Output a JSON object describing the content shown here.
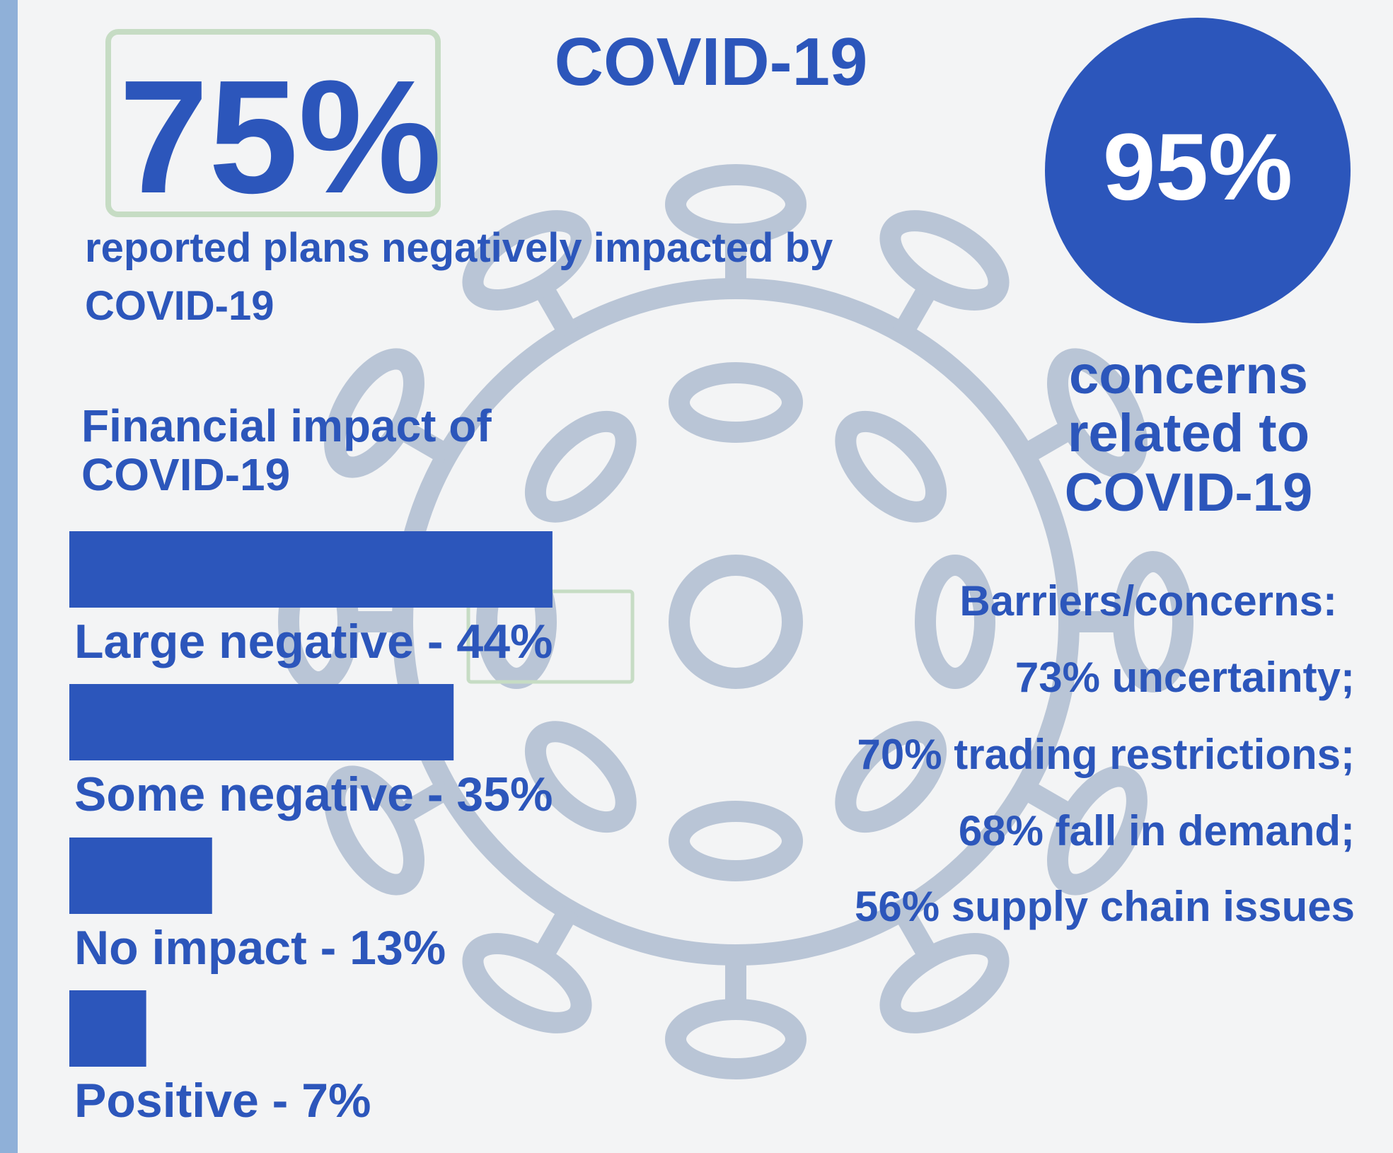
{
  "title": "COVID-19",
  "headline": {
    "figure": "75%",
    "caption": [
      "reported plans negatively impacted by",
      "COVID-19"
    ]
  },
  "concerns": {
    "figure": "95%",
    "caption": [
      "concerns",
      "related to",
      "COVID-19"
    ]
  },
  "barriers": {
    "heading": "Barriers/concerns:",
    "items": [
      "73% uncertainty;",
      "70% trading restrictions;",
      "68% fall in demand;",
      "56% supply chain issues"
    ]
  },
  "chart_data": {
    "type": "bar",
    "orientation": "horizontal",
    "title": [
      "Financial impact of",
      "COVID-19"
    ],
    "categories": [
      "Large negative - 44%",
      "Some negative - 35%",
      "No impact - 13%",
      "Positive - 7%"
    ],
    "values": [
      44,
      35,
      13,
      7
    ],
    "color": "#2c56bb"
  }
}
